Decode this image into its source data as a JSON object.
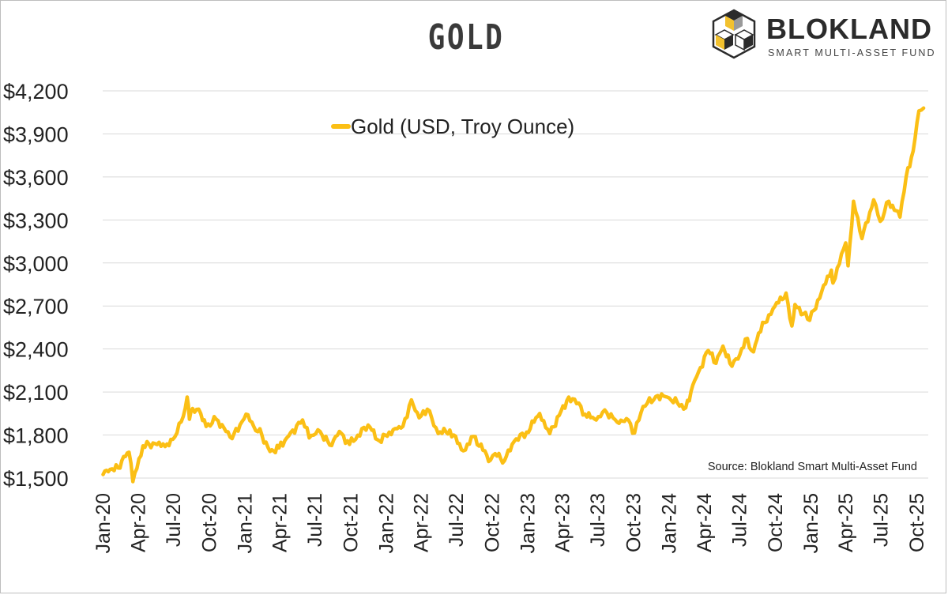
{
  "title": "GOLD",
  "logo": {
    "name": "BLOKLAND",
    "tagline": "SMART MULTI-ASSET FUND",
    "colors": {
      "yellow": "#f2c12e",
      "dark": "#2b2b2b",
      "gray": "#9a9a9a"
    }
  },
  "source": "Source: Blokland Smart Multi-Asset Fund",
  "colors": {
    "line": "#fbbf15",
    "grid": "#d9d9d9"
  },
  "chart_data": {
    "type": "line",
    "xlabel": "",
    "ylabel": "",
    "ylim": [
      1500,
      4200
    ],
    "xlim": [
      "2020-01-01",
      "2025-11-01"
    ],
    "grid": "horizontal",
    "legend_placement": "top-center",
    "y_ticks": [
      "$1,500",
      "$1,800",
      "$2,100",
      "$2,400",
      "$2,700",
      "$3,000",
      "$3,300",
      "$3,600",
      "$3,900",
      "$4,200"
    ],
    "y_tick_values": [
      1500,
      1800,
      2100,
      2400,
      2700,
      3000,
      3300,
      3600,
      3900,
      4200
    ],
    "x_ticks": [
      "Jan-20",
      "Apr-20",
      "Jul-20",
      "Oct-20",
      "Jan-21",
      "Apr-21",
      "Jul-21",
      "Oct-21",
      "Jan-22",
      "Apr-22",
      "Jul-22",
      "Oct-22",
      "Jan-23",
      "Apr-23",
      "Jul-23",
      "Oct-23",
      "Jan-24",
      "Apr-24",
      "Jul-24",
      "Oct-24",
      "Jan-25",
      "Apr-25",
      "Jul-25",
      "Oct-25"
    ],
    "x_tick_dates": [
      "2020-01-01",
      "2020-04-01",
      "2020-07-01",
      "2020-10-01",
      "2021-01-01",
      "2021-04-01",
      "2021-07-01",
      "2021-10-01",
      "2022-01-01",
      "2022-04-01",
      "2022-07-01",
      "2022-10-01",
      "2023-01-01",
      "2023-04-01",
      "2023-07-01",
      "2023-10-01",
      "2024-01-01",
      "2024-04-01",
      "2024-07-01",
      "2024-10-01",
      "2025-01-01",
      "2025-04-01",
      "2025-07-01",
      "2025-10-01"
    ],
    "series": [
      {
        "name": "Gold (USD, Troy Ounce)",
        "color": "#fbbf15",
        "points": [
          [
            "2020-01-02",
            1525
          ],
          [
            "2020-01-20",
            1560
          ],
          [
            "2020-02-10",
            1570
          ],
          [
            "2020-02-24",
            1650
          ],
          [
            "2020-03-09",
            1680
          ],
          [
            "2020-03-19",
            1475
          ],
          [
            "2020-04-14",
            1725
          ],
          [
            "2020-05-15",
            1740
          ],
          [
            "2020-06-10",
            1720
          ],
          [
            "2020-06-30",
            1770
          ],
          [
            "2020-07-27",
            1930
          ],
          [
            "2020-08-06",
            2065
          ],
          [
            "2020-08-12",
            1910
          ],
          [
            "2020-08-20",
            1985
          ],
          [
            "2020-09-10",
            1950
          ],
          [
            "2020-09-24",
            1860
          ],
          [
            "2020-10-20",
            1910
          ],
          [
            "2020-11-09",
            1850
          ],
          [
            "2020-11-30",
            1775
          ],
          [
            "2021-01-05",
            1945
          ],
          [
            "2021-01-25",
            1860
          ],
          [
            "2021-02-15",
            1800
          ],
          [
            "2021-03-08",
            1685
          ],
          [
            "2021-03-31",
            1710
          ],
          [
            "2021-04-20",
            1780
          ],
          [
            "2021-05-31",
            1905
          ],
          [
            "2021-06-17",
            1780
          ],
          [
            "2021-07-15",
            1825
          ],
          [
            "2021-08-09",
            1730
          ],
          [
            "2021-09-03",
            1825
          ],
          [
            "2021-09-29",
            1735
          ],
          [
            "2021-11-16",
            1870
          ],
          [
            "2021-12-15",
            1760
          ],
          [
            "2022-01-25",
            1845
          ],
          [
            "2022-02-14",
            1860
          ],
          [
            "2022-03-08",
            2045
          ],
          [
            "2022-03-28",
            1920
          ],
          [
            "2022-04-18",
            1980
          ],
          [
            "2022-05-16",
            1810
          ],
          [
            "2022-06-15",
            1835
          ],
          [
            "2022-07-20",
            1690
          ],
          [
            "2022-08-15",
            1790
          ],
          [
            "2022-09-28",
            1625
          ],
          [
            "2022-10-10",
            1670
          ],
          [
            "2022-11-03",
            1620
          ],
          [
            "2022-11-28",
            1755
          ],
          [
            "2022-12-30",
            1820
          ],
          [
            "2023-02-02",
            1950
          ],
          [
            "2023-02-28",
            1810
          ],
          [
            "2023-04-13",
            2040
          ],
          [
            "2023-05-03",
            2050
          ],
          [
            "2023-05-30",
            1945
          ],
          [
            "2023-06-28",
            1905
          ],
          [
            "2023-07-20",
            1975
          ],
          [
            "2023-08-21",
            1890
          ],
          [
            "2023-09-14",
            1915
          ],
          [
            "2023-10-05",
            1815
          ],
          [
            "2023-10-27",
            2000
          ],
          [
            "2023-12-04",
            2075
          ],
          [
            "2023-12-28",
            2065
          ],
          [
            "2024-02-14",
            1990
          ],
          [
            "2024-03-08",
            2180
          ],
          [
            "2024-04-12",
            2390
          ],
          [
            "2024-05-02",
            2300
          ],
          [
            "2024-05-20",
            2420
          ],
          [
            "2024-06-07",
            2300
          ],
          [
            "2024-06-28",
            2330
          ],
          [
            "2024-07-17",
            2470
          ],
          [
            "2024-08-07",
            2380
          ],
          [
            "2024-08-20",
            2510
          ],
          [
            "2024-09-26",
            2680
          ],
          [
            "2024-10-30",
            2790
          ],
          [
            "2024-11-14",
            2560
          ],
          [
            "2024-11-22",
            2710
          ],
          [
            "2024-12-30",
            2600
          ],
          [
            "2025-01-30",
            2800
          ],
          [
            "2025-02-24",
            2950
          ],
          [
            "2025-02-28",
            2860
          ],
          [
            "2025-04-02",
            3140
          ],
          [
            "2025-04-08",
            2980
          ],
          [
            "2025-04-22",
            3430
          ],
          [
            "2025-05-14",
            3170
          ],
          [
            "2025-06-13",
            3440
          ],
          [
            "2025-06-30",
            3290
          ],
          [
            "2025-07-22",
            3430
          ],
          [
            "2025-08-20",
            3320
          ],
          [
            "2025-09-05",
            3600
          ],
          [
            "2025-09-23",
            3780
          ],
          [
            "2025-10-08",
            4060
          ],
          [
            "2025-10-20",
            4080
          ]
        ]
      }
    ]
  }
}
